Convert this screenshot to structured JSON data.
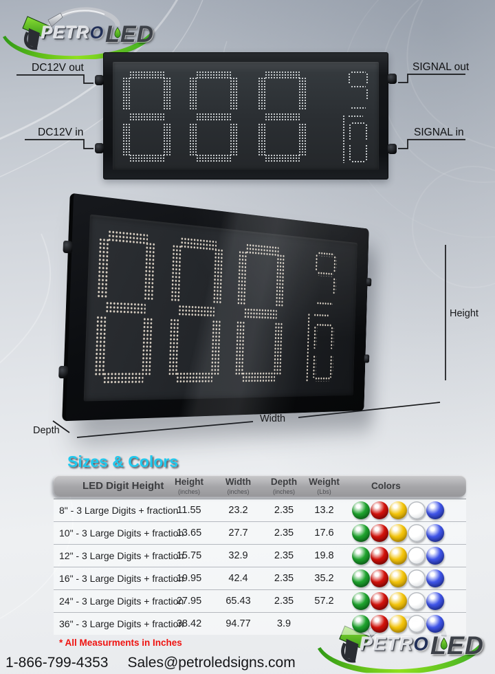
{
  "logo": {
    "petr": "PETR",
    "o": "O",
    "led": "LED"
  },
  "front_view": {
    "digits": "888",
    "fraction_top": "9",
    "fraction_bottom": "10",
    "labels": {
      "dc12v_out": "DC12V out",
      "signal_out": "SIGNAL out",
      "dc12v_in": "DC12V in",
      "signal_in": "SIGNAL in"
    }
  },
  "perspective_view": {
    "digits": "888",
    "fraction_top": "9",
    "fraction_bottom": "10",
    "dimension_labels": {
      "height": "Height",
      "width": "Width",
      "depth": "Depth"
    }
  },
  "table": {
    "title": "Sizes & Colors",
    "columns": [
      {
        "label": "LED Digit Height",
        "unit": ""
      },
      {
        "label": "Height",
        "unit": "(inches)"
      },
      {
        "label": "Width",
        "unit": "(inches)"
      },
      {
        "label": "Depth",
        "unit": "(inches)"
      },
      {
        "label": "Weight",
        "unit": "(Lbs)"
      },
      {
        "label": "Colors",
        "unit": ""
      }
    ],
    "rows": [
      {
        "name": "8\" - 3 Large Digits  + fraction",
        "height": "11.55",
        "width": "23.2",
        "depth": "2.35",
        "weight": "13.2"
      },
      {
        "name": "10\"  - 3 Large Digits  + fraction",
        "height": "13.65",
        "width": "27.7",
        "depth": "2.35",
        "weight": "17.6"
      },
      {
        "name": "12\" - 3 Large Digits  + fraction",
        "height": "15.75",
        "width": "32.9",
        "depth": "2.35",
        "weight": "19.8"
      },
      {
        "name": "16\" - 3 Large Digits  + fraction",
        "height": "19.95",
        "width": "42.4",
        "depth": "2.35",
        "weight": "35.2"
      },
      {
        "name": "24\" - 3 Large Digits  + fraction",
        "height": "27.95",
        "width": "65.43",
        "depth": "2.35",
        "weight": "57.2"
      },
      {
        "name": "36\" - 3 Large Digits  + fraction",
        "height": "38.42",
        "width": "94.77",
        "depth": "3.9",
        "weight": ""
      }
    ],
    "led_colors": [
      {
        "name": "green",
        "hex": "#1fa32e",
        "dark": "#0a5c17"
      },
      {
        "name": "red",
        "hex": "#d2120b",
        "dark": "#7a0505"
      },
      {
        "name": "yellow",
        "hex": "#f4c50c",
        "dark": "#b58a04"
      },
      {
        "name": "white",
        "hex": "#ffffff",
        "dark": "#cfd3d7"
      },
      {
        "name": "blue",
        "hex": "#4055e8",
        "dark": "#1b2a8f"
      }
    ],
    "note": "* All Measurments in Inches"
  },
  "footer": {
    "phone": "1-866-799-4353",
    "email": "Sales@petroledsigns.com"
  }
}
